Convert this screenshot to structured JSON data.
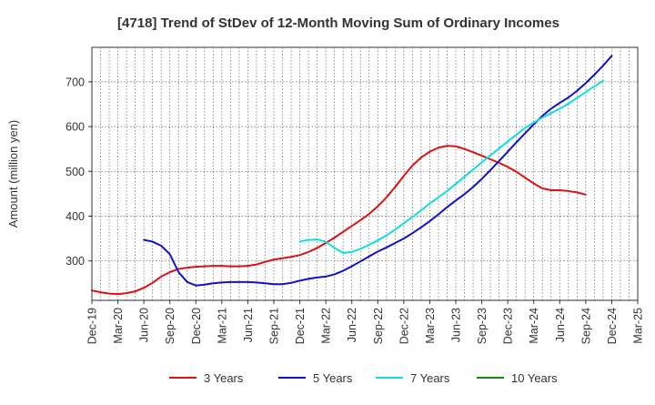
{
  "chart_data": {
    "type": "line",
    "title": "[4718]  Trend of StDev of 12-Month Moving Sum of Ordinary Incomes",
    "xlabel": "",
    "ylabel": "Amount (million yen)",
    "ylim": [
      212,
      777
    ],
    "y_ticks": [
      300,
      400,
      500,
      600,
      700
    ],
    "grid": true,
    "legend_position": "bottom",
    "x_categories": [
      "Dec-19",
      "Mar-20",
      "Jun-20",
      "Sep-20",
      "Dec-20",
      "Mar-21",
      "Jun-21",
      "Sep-21",
      "Dec-21",
      "Mar-22",
      "Jun-22",
      "Sep-22",
      "Dec-22",
      "Mar-23",
      "Jun-23",
      "Sep-23",
      "Dec-23",
      "Mar-24",
      "Jun-24",
      "Sep-24",
      "Dec-24",
      "Mar-25"
    ],
    "x_tick_labels": [
      "Dec-19",
      "Mar-20",
      "Jun-20",
      "Sep-20",
      "Dec-20",
      "Mar-21",
      "Jun-21",
      "Sep-21",
      "Dec-21",
      "Mar-22",
      "Jun-22",
      "Sep-22",
      "Dec-22",
      "Mar-23",
      "Jun-23",
      "Sep-23",
      "Dec-23",
      "Mar-24",
      "Jun-24",
      "Sep-24",
      "Dec-24",
      "Mar-25"
    ],
    "series": [
      {
        "name": "3 Years",
        "color": "#dd1111",
        "points": [
          [
            0,
            234
          ],
          [
            1,
            230
          ],
          [
            2,
            227
          ],
          [
            3,
            226
          ],
          [
            4,
            228
          ],
          [
            5,
            232
          ],
          [
            6,
            240
          ],
          [
            7,
            251
          ],
          [
            8,
            265
          ],
          [
            9,
            275
          ],
          [
            10,
            282
          ],
          [
            11,
            285
          ],
          [
            12,
            287
          ],
          [
            13,
            288
          ],
          [
            14,
            289
          ],
          [
            15,
            289
          ],
          [
            16,
            288
          ],
          [
            17,
            288
          ],
          [
            18,
            289
          ],
          [
            19,
            292
          ],
          [
            20,
            298
          ],
          [
            21,
            303
          ],
          [
            22,
            306
          ],
          [
            23,
            309
          ],
          [
            24,
            313
          ],
          [
            25,
            320
          ],
          [
            26,
            329
          ],
          [
            27,
            340
          ],
          [
            28,
            352
          ],
          [
            29,
            365
          ],
          [
            30,
            378
          ],
          [
            31,
            391
          ],
          [
            32,
            405
          ],
          [
            33,
            422
          ],
          [
            34,
            442
          ],
          [
            35,
            465
          ],
          [
            36,
            490
          ],
          [
            37,
            513
          ],
          [
            38,
            531
          ],
          [
            39,
            544
          ],
          [
            40,
            553
          ],
          [
            41,
            557
          ],
          [
            42,
            556
          ],
          [
            43,
            550
          ],
          [
            44,
            543
          ],
          [
            45,
            535
          ],
          [
            46,
            527
          ],
          [
            47,
            519
          ],
          [
            48,
            510
          ],
          [
            49,
            499
          ],
          [
            50,
            486
          ],
          [
            51,
            473
          ],
          [
            52,
            462
          ],
          [
            53,
            458
          ],
          [
            54,
            458
          ],
          [
            55,
            456
          ],
          [
            56,
            453
          ],
          [
            57,
            448
          ]
        ]
      },
      {
        "name": "5 Years",
        "color": "#1111cc",
        "points": [
          [
            6,
            347
          ],
          [
            7,
            343
          ],
          [
            8,
            334
          ],
          [
            9,
            315
          ],
          [
            10,
            275
          ],
          [
            11,
            253
          ],
          [
            12,
            245
          ],
          [
            13,
            247
          ],
          [
            14,
            250
          ],
          [
            15,
            252
          ],
          [
            16,
            253
          ],
          [
            17,
            253
          ],
          [
            18,
            253
          ],
          [
            19,
            252
          ],
          [
            20,
            250
          ],
          [
            21,
            248
          ],
          [
            22,
            248
          ],
          [
            23,
            251
          ],
          [
            24,
            256
          ],
          [
            25,
            260
          ],
          [
            26,
            263
          ],
          [
            27,
            265
          ],
          [
            28,
            270
          ],
          [
            29,
            278
          ],
          [
            30,
            288
          ],
          [
            31,
            299
          ],
          [
            32,
            310
          ],
          [
            33,
            321
          ],
          [
            34,
            330
          ],
          [
            35,
            340
          ],
          [
            36,
            350
          ],
          [
            37,
            362
          ],
          [
            38,
            375
          ],
          [
            39,
            389
          ],
          [
            40,
            404
          ],
          [
            41,
            420
          ],
          [
            42,
            435
          ],
          [
            43,
            449
          ],
          [
            44,
            465
          ],
          [
            45,
            483
          ],
          [
            46,
            503
          ],
          [
            47,
            523
          ],
          [
            48,
            544
          ],
          [
            49,
            565
          ],
          [
            50,
            585
          ],
          [
            51,
            605
          ],
          [
            52,
            624
          ],
          [
            53,
            640
          ],
          [
            54,
            653
          ],
          [
            55,
            665
          ],
          [
            56,
            680
          ],
          [
            57,
            697
          ],
          [
            58,
            716
          ],
          [
            59,
            736
          ],
          [
            60,
            758
          ]
        ]
      },
      {
        "name": "7 Years",
        "color": "#11dddd",
        "points": [
          [
            24,
            343
          ],
          [
            25,
            347
          ],
          [
            26,
            348
          ],
          [
            27,
            343
          ],
          [
            28,
            329
          ],
          [
            29,
            318
          ],
          [
            30,
            320
          ],
          [
            31,
            327
          ],
          [
            32,
            336
          ],
          [
            33,
            346
          ],
          [
            34,
            357
          ],
          [
            35,
            370
          ],
          [
            36,
            384
          ],
          [
            37,
            398
          ],
          [
            38,
            413
          ],
          [
            39,
            428
          ],
          [
            40,
            442
          ],
          [
            41,
            456
          ],
          [
            42,
            472
          ],
          [
            43,
            488
          ],
          [
            44,
            504
          ],
          [
            45,
            520
          ],
          [
            46,
            536
          ],
          [
            47,
            551
          ],
          [
            48,
            567
          ],
          [
            49,
            582
          ],
          [
            50,
            597
          ],
          [
            51,
            609
          ],
          [
            52,
            620
          ],
          [
            53,
            630
          ],
          [
            54,
            640
          ],
          [
            55,
            651
          ],
          [
            56,
            664
          ],
          [
            57,
            677
          ],
          [
            58,
            690
          ],
          [
            59,
            702
          ]
        ]
      },
      {
        "name": "10 Years",
        "color": "#118811",
        "points": []
      }
    ]
  }
}
